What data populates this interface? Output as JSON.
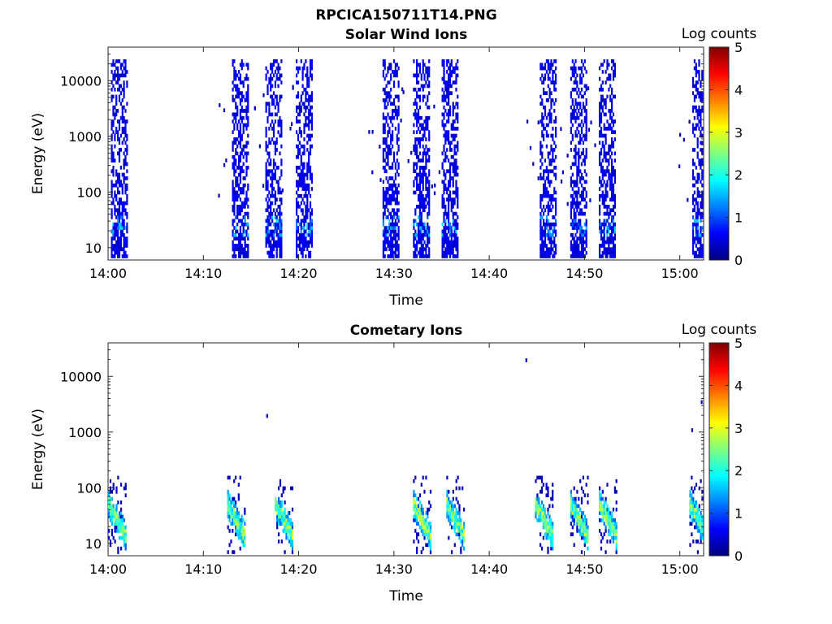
{
  "figure": {
    "title": "RPCICA150711T14.PNG"
  },
  "colorbar": {
    "label": "Log counts",
    "ticks": [
      "0",
      "1",
      "2",
      "3",
      "4",
      "5"
    ],
    "range": [
      0,
      5
    ],
    "colormap": "jet"
  },
  "chart_data": [
    {
      "type": "heatmap",
      "title": "Solar Wind Ions",
      "xlabel": "Time",
      "ylabel": "Energy (eV)",
      "x_ticks": [
        "14:00",
        "14:10",
        "14:20",
        "14:30",
        "14:40",
        "14:50",
        "15:00"
      ],
      "y_ticks": [
        "10",
        "100",
        "1000",
        "10000"
      ],
      "y_scale": "log",
      "xlim_minutes": [
        0,
        62.5
      ],
      "ylim": [
        6,
        40000
      ],
      "bursts_start_minutes": [
        0.3,
        13.0,
        16.5,
        19.7,
        28.8,
        32.0,
        35.0,
        45.3,
        48.5,
        51.5,
        61.3
      ],
      "burst_duration_minutes": 1.7,
      "typical_log_counts": 0.3,
      "peak_log_counts_near_20eV": 1.6
    },
    {
      "type": "heatmap",
      "title": "Cometary Ions",
      "xlabel": "Time",
      "ylabel": "Energy (eV)",
      "x_ticks": [
        "14:00",
        "14:10",
        "14:20",
        "14:30",
        "14:40",
        "14:50",
        "15:00"
      ],
      "y_ticks": [
        "10",
        "100",
        "1000",
        "10000"
      ],
      "y_scale": "log",
      "xlim_minutes": [
        0,
        62.5
      ],
      "ylim": [
        6,
        40000
      ],
      "bursts_start_minutes": [
        0.0,
        12.5,
        17.5,
        32.0,
        35.5,
        44.8,
        48.5,
        51.5,
        61.0
      ],
      "energy_range_eV": [
        6,
        150
      ],
      "peak_log_counts": 3.0,
      "isolated_points": [
        {
          "t_minutes": 16.6,
          "energy_eV": 1800
        },
        {
          "t_minutes": 43.8,
          "energy_eV": 18000
        },
        {
          "t_minutes": 62.2,
          "energy_eV": 3200
        },
        {
          "t_minutes": 61.2,
          "energy_eV": 1000
        }
      ]
    }
  ]
}
